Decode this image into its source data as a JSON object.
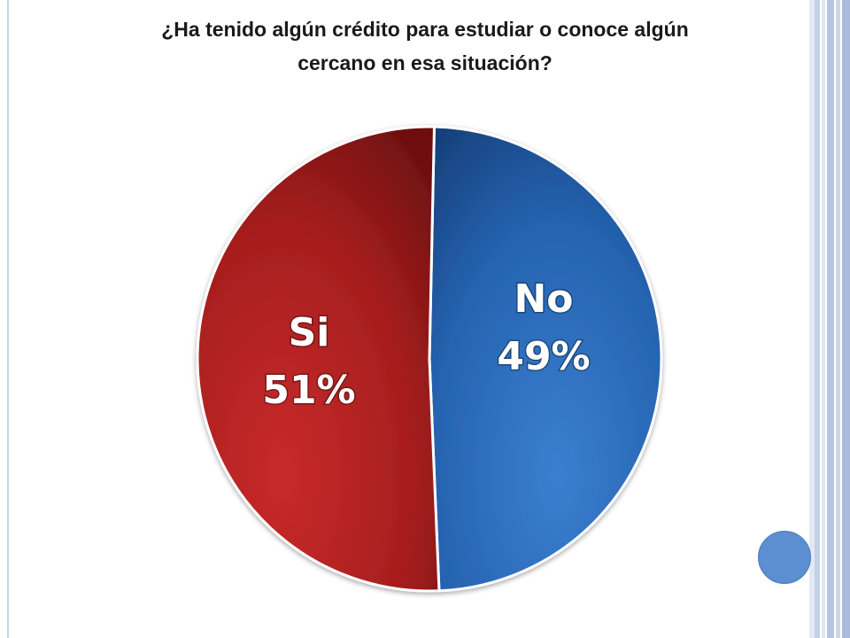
{
  "title": {
    "line1": "¿Ha tenido algún crédito para estudiar o conoce algún",
    "line2": "cercano en esa situación?"
  },
  "colors": {
    "Si": "#a61e1e",
    "No": "#2563b0",
    "accent_circle": "#5b8fd1"
  },
  "chart_data": {
    "type": "pie",
    "title": "¿Ha tenido algún crédito para estudiar o conoce algún cercano en esa situación?",
    "categories": [
      "No",
      "Si"
    ],
    "values": [
      49,
      51
    ],
    "labels": [
      "No",
      "Si"
    ],
    "percent_labels": [
      "49%",
      "51%"
    ]
  }
}
